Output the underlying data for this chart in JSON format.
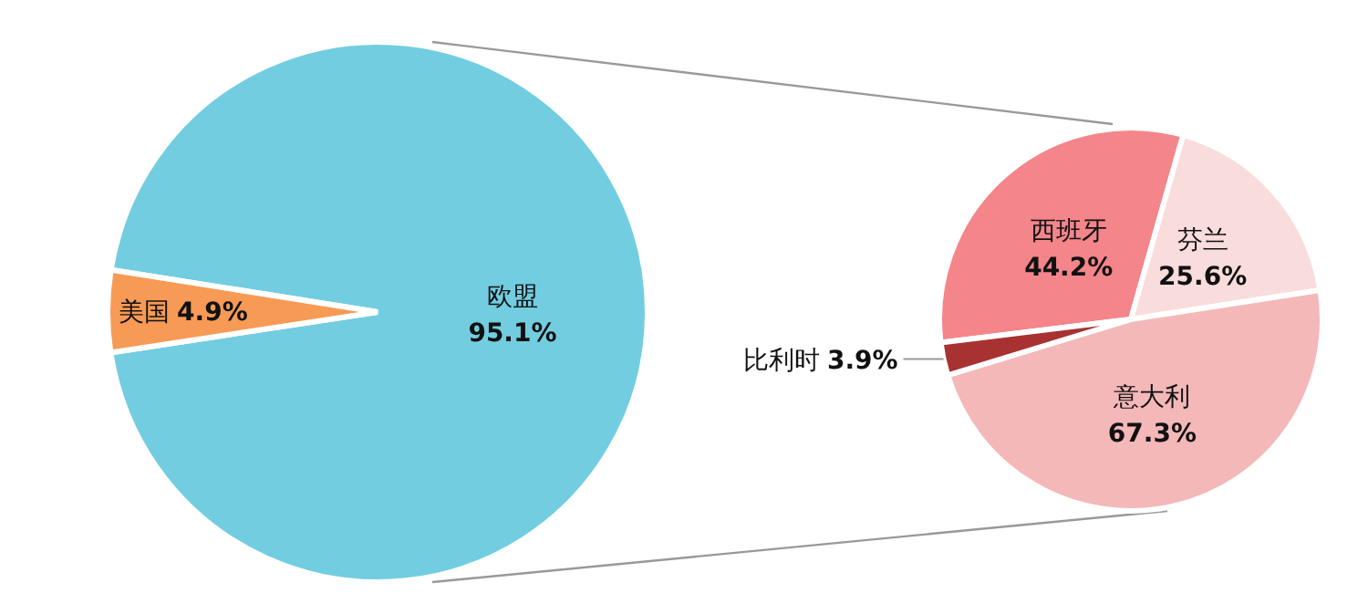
{
  "chart_data": [
    {
      "type": "pie",
      "categories": [
        "欧盟",
        "美国"
      ],
      "values": [
        95.1,
        4.9
      ],
      "colors": [
        "#72cde0",
        "#f79a55"
      ],
      "value_labels": [
        "95.1%",
        "4.9%"
      ]
    },
    {
      "type": "pie",
      "categories": [
        "西班牙",
        "芬兰",
        "意大利",
        "比利时"
      ],
      "values": [
        44.2,
        25.6,
        67.3,
        3.9
      ],
      "colors": [
        "#f4858a",
        "#f9dcdc",
        "#f4b8b9",
        "#a83232"
      ],
      "value_labels": [
        "44.2%",
        "25.6%",
        "67.3%",
        "3.9%"
      ]
    }
  ]
}
